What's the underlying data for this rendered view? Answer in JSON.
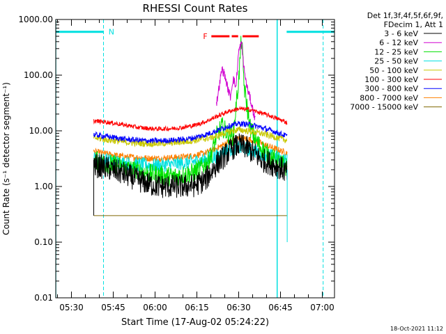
{
  "chart_data": {
    "type": "line",
    "title": "RHESSI Count Rates",
    "xlabel": "Start Time (17-Aug-02 05:24:22)",
    "ylabel": "Count Rate (s⁻¹ detector segment⁻¹)",
    "yscale": "log",
    "ylim": [
      0.01,
      1000
    ],
    "xlim_minutes": [
      324.37,
      424.37
    ],
    "x_ticks": [
      {
        "label": "05:30",
        "minute": 330
      },
      {
        "label": "05:45",
        "minute": 345
      },
      {
        "label": "06:00",
        "minute": 360
      },
      {
        "label": "06:15",
        "minute": 375
      },
      {
        "label": "06:30",
        "minute": 390
      },
      {
        "label": "06:45",
        "minute": 405
      },
      {
        "label": "07:00",
        "minute": 420
      }
    ],
    "y_ticks": [
      {
        "label": "1000.00",
        "value": 1000
      },
      {
        "label": "100.00",
        "value": 100
      },
      {
        "label": "10.00",
        "value": 10
      },
      {
        "label": "1.00",
        "value": 1
      },
      {
        "label": "0.10",
        "value": 0.1
      },
      {
        "label": "0.01",
        "value": 0.01
      }
    ],
    "legend_header": [
      "Det 1f,3f,4f,5f,6f,9f,",
      "FDecim 1, Att 1"
    ],
    "legend_placement": "right",
    "series": [
      {
        "name": "3 - 6 keV",
        "color": "#000000",
        "x": [
          338.0,
          342,
          346,
          350,
          354,
          358,
          362,
          366,
          370,
          374,
          378,
          382,
          386,
          388,
          390,
          392,
          394,
          396,
          398,
          400,
          402,
          404,
          406,
          407.4
        ],
        "y": [
          2.4,
          2.2,
          1.9,
          1.6,
          1.3,
          1.1,
          1.0,
          1.0,
          1.0,
          1.05,
          1.3,
          2.5,
          4.0,
          5.0,
          5.5,
          5.2,
          4.5,
          3.8,
          3.0,
          2.8,
          2.5,
          2.3,
          2.0,
          1.7
        ]
      },
      {
        "name": "6 - 12 keV",
        "color": "#d000d0",
        "x": [
          382,
          384,
          385,
          386,
          387,
          388,
          389,
          390,
          391,
          392,
          393,
          394,
          395,
          396
        ],
        "y": [
          30,
          130,
          100,
          60,
          40,
          90,
          60,
          270,
          380,
          120,
          60,
          40,
          25,
          15
        ]
      },
      {
        "name": "12 - 25 keV",
        "color": "#00e000",
        "x": [
          338.0,
          342,
          346,
          350,
          354,
          358,
          362,
          366,
          370,
          374,
          378,
          380,
          382,
          384,
          386,
          388,
          390,
          391,
          392,
          394,
          396,
          398,
          400,
          402,
          404,
          406,
          407.4
        ],
        "y": [
          3.0,
          2.6,
          2.4,
          2.1,
          1.9,
          1.7,
          1.6,
          1.5,
          1.6,
          1.8,
          2.5,
          3.5,
          8,
          12,
          9,
          8,
          80,
          480,
          60,
          12,
          7,
          5,
          4.0,
          3.2,
          2.8,
          2.4,
          2.2
        ]
      },
      {
        "name": "25 - 50 keV",
        "color": "#00e0e0",
        "x": [
          338.0,
          342,
          346,
          350,
          354,
          358,
          362,
          366,
          370,
          374,
          378,
          382,
          386,
          390,
          394,
          398,
          402,
          406,
          407.4
        ],
        "y": [
          3.2,
          3.0,
          2.8,
          2.6,
          2.5,
          2.4,
          2.4,
          2.5,
          2.6,
          2.8,
          3.0,
          3.5,
          4.5,
          5.0,
          4.6,
          4.0,
          3.5,
          3.0,
          2.9
        ]
      },
      {
        "name": "50 - 100 keV",
        "color": "#c8c800",
        "x": [
          338.0,
          342,
          346,
          350,
          354,
          358,
          362,
          366,
          370,
          374,
          378,
          382,
          386,
          390,
          394,
          398,
          402,
          406,
          407.4
        ],
        "y": [
          7.5,
          7.0,
          6.6,
          6.2,
          6.0,
          5.9,
          5.9,
          6.1,
          6.3,
          6.7,
          7.2,
          8.0,
          9.5,
          10.5,
          9.8,
          9.0,
          8.0,
          7.0,
          6.8
        ]
      },
      {
        "name": "100 - 300 keV",
        "color": "#ff0000",
        "x": [
          338.0,
          342,
          346,
          350,
          354,
          358,
          362,
          366,
          370,
          374,
          378,
          382,
          386,
          390,
          394,
          398,
          402,
          406,
          407.4
        ],
        "y": [
          15,
          14.5,
          13.5,
          12.5,
          11.5,
          11.0,
          10.8,
          11.0,
          11.5,
          12.5,
          14.5,
          18,
          22,
          25,
          24,
          21,
          18,
          15,
          14
        ]
      },
      {
        "name": "300 - 800 keV",
        "color": "#0000ff",
        "x": [
          338.0,
          342,
          346,
          350,
          354,
          358,
          362,
          366,
          370,
          374,
          378,
          382,
          386,
          390,
          394,
          398,
          402,
          406,
          407.4
        ],
        "y": [
          8.5,
          8.0,
          7.5,
          7.0,
          6.8,
          6.6,
          6.6,
          6.8,
          7.0,
          7.5,
          8.5,
          10,
          12,
          13.5,
          13,
          11.5,
          10,
          8.5,
          8.0
        ]
      },
      {
        "name": "800 - 7000 keV",
        "color": "#ff7f00",
        "x": [
          338.0,
          342,
          346,
          350,
          354,
          358,
          362,
          366,
          370,
          374,
          378,
          382,
          386,
          390,
          394,
          398,
          402,
          406,
          407.4
        ],
        "y": [
          4.2,
          3.9,
          3.6,
          3.4,
          3.3,
          3.2,
          3.2,
          3.3,
          3.4,
          3.6,
          4.0,
          4.8,
          6.2,
          7.5,
          7.0,
          6.0,
          5.0,
          4.2,
          4.0
        ]
      },
      {
        "name": "7000 - 15000 keV",
        "color": "#7f6600",
        "x": [
          338.0,
          407.4
        ],
        "y": [
          0.3,
          0.3
        ]
      }
    ],
    "attenuator_state": {
      "color": "#00e0e0",
      "level": 600,
      "solid_segments": [
        [
          324.37,
          341.5
        ],
        [
          407.2,
          424.37
        ]
      ],
      "dashed_vlines": [
        341.5,
        420.3
      ],
      "solid_vlines": [
        324.37,
        403.8
      ],
      "labels": [
        {
          "text": "N",
          "minute": 343.3
        }
      ]
    },
    "flare_flag": {
      "label": "F",
      "color": "#ff0000",
      "level": 500,
      "segments": [
        [
          380.2,
          386.7
        ],
        [
          387.5,
          389.8
        ],
        [
          391.4,
          397.2
        ]
      ]
    }
  },
  "timestamp": "18-Oct-2021 11:12"
}
